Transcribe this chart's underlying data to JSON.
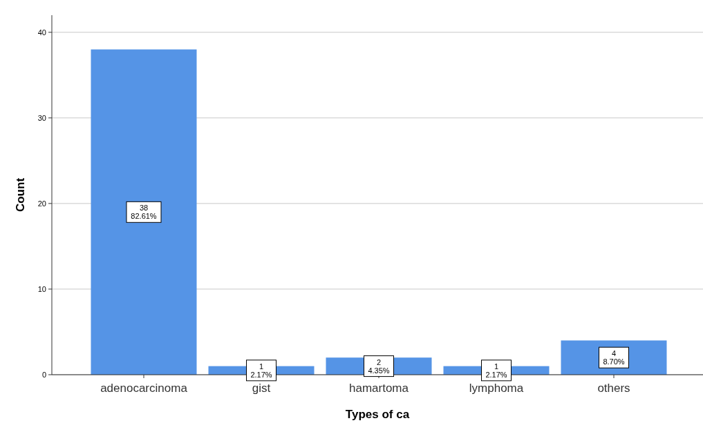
{
  "chart_data": {
    "type": "bar",
    "xlabel": "Types of ca",
    "ylabel": "Count",
    "categories": [
      "adenocarcinoma",
      "gist",
      "hamartoma",
      "lymphoma",
      "others"
    ],
    "values": [
      38,
      1,
      2,
      1,
      4
    ],
    "color": "#5594e6",
    "value_labels": [
      "38\n82.61%",
      "1\n2.17%",
      "2\n4.35%",
      "1\n2.17%",
      "4\n8.70%"
    ],
    "ylim": [
      0,
      42
    ],
    "yticks": [
      0,
      10,
      20,
      30,
      40
    ],
    "grid": "y"
  }
}
